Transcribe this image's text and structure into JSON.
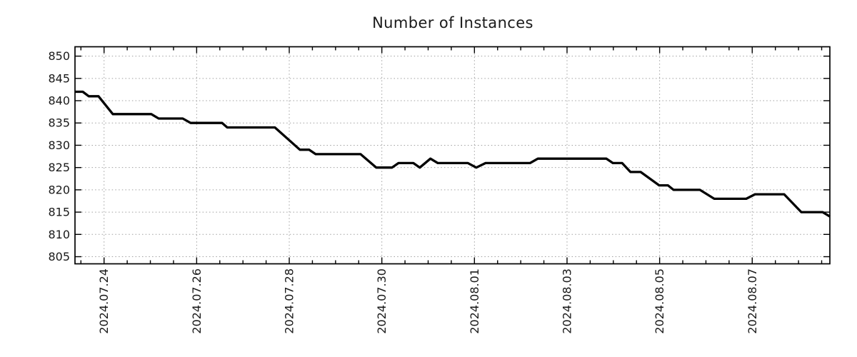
{
  "title": "Number of Instances",
  "colors": {
    "line": "#000000",
    "grid": "#a0a0a0",
    "axis": "#000000",
    "text": "#1a1a1a",
    "background": "#ffffff"
  },
  "chart_data": {
    "type": "line",
    "title": "Number of Instances",
    "grid": "dotted, on major x ticks and all y ticks",
    "legend": false,
    "x_axis": {
      "kind": "date",
      "day0": "2024.07.23",
      "lim_days": [
        0.372,
        16.677
      ],
      "major_ticks": [
        {
          "day": 1,
          "label": "2024.07.24"
        },
        {
          "day": 3,
          "label": "2024.07.26"
        },
        {
          "day": 5,
          "label": "2024.07.28"
        },
        {
          "day": 7,
          "label": "2024.07.30"
        },
        {
          "day": 9,
          "label": "2024.08.01"
        },
        {
          "day": 11,
          "label": "2024.08.03"
        },
        {
          "day": 13,
          "label": "2024.08.05"
        },
        {
          "day": 15,
          "label": "2024.08.07"
        }
      ],
      "minor_tick_interval_days": 0.5,
      "label_rotation_deg": -90
    },
    "y_axis": {
      "lim": [
        803.4,
        852.1
      ],
      "tick_start": 805,
      "tick_end": 850,
      "tick_step": 5
    },
    "series": [
      {
        "name": "Number of Instances",
        "color": "#000000",
        "points": [
          [
            0.37,
            842
          ],
          [
            0.54,
            842
          ],
          [
            0.67,
            841
          ],
          [
            0.88,
            841
          ],
          [
            1.19,
            837
          ],
          [
            2.02,
            837
          ],
          [
            2.18,
            836
          ],
          [
            2.7,
            836
          ],
          [
            2.87,
            835
          ],
          [
            3.55,
            835
          ],
          [
            3.66,
            834
          ],
          [
            4.69,
            834
          ],
          [
            5.23,
            829
          ],
          [
            5.43,
            829
          ],
          [
            5.57,
            828
          ],
          [
            6.54,
            828
          ],
          [
            6.88,
            825
          ],
          [
            7.22,
            825
          ],
          [
            7.36,
            826
          ],
          [
            7.68,
            826
          ],
          [
            7.82,
            825
          ],
          [
            8.05,
            827
          ],
          [
            8.21,
            826
          ],
          [
            8.86,
            826
          ],
          [
            9.04,
            825
          ],
          [
            9.24,
            826
          ],
          [
            10.2,
            826
          ],
          [
            10.37,
            827
          ],
          [
            11.85,
            827
          ],
          [
            11.99,
            826
          ],
          [
            12.19,
            826
          ],
          [
            12.37,
            824
          ],
          [
            12.59,
            824
          ],
          [
            12.99,
            821
          ],
          [
            13.18,
            821
          ],
          [
            13.3,
            820
          ],
          [
            13.87,
            820
          ],
          [
            14.18,
            818
          ],
          [
            14.87,
            818
          ],
          [
            15.06,
            819
          ],
          [
            15.69,
            819
          ],
          [
            16.06,
            815
          ],
          [
            16.52,
            815
          ],
          [
            16.68,
            814
          ]
        ]
      }
    ]
  }
}
